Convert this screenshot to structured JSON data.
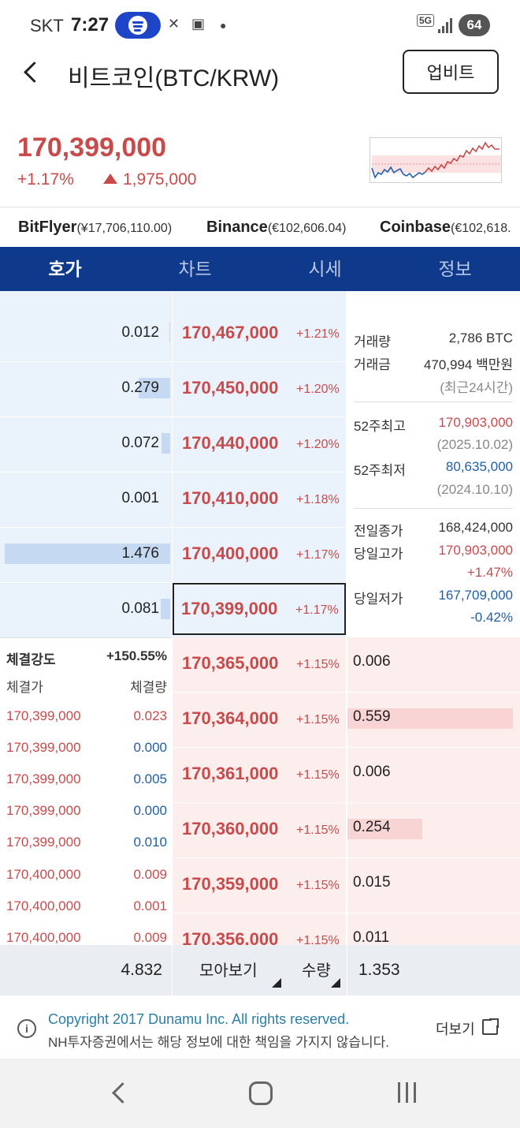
{
  "status": {
    "carrier": "SKT",
    "time": "7:27",
    "network": "5G",
    "battery": "64"
  },
  "header": {
    "title": "비트코인(BTC/KRW)",
    "upbit_label": "업비트"
  },
  "price": {
    "current": "170,399,000",
    "change_pct": "+1.17%",
    "change_abs": "1,975,000"
  },
  "exchanges": [
    {
      "name": "BitFlyer",
      "price": "(¥17,706,110.00)"
    },
    {
      "name": "Binance",
      "price": "(€102,606.04)"
    },
    {
      "name": "Coinbase",
      "price": "(€102,618."
    }
  ],
  "tabs": [
    "호가",
    "차트",
    "시세",
    "정보"
  ],
  "asks": [
    {
      "qty": "0.012",
      "price": "170,467,000",
      "pct": "+1.21%",
      "bar": 0.005
    },
    {
      "qty": "0.279",
      "price": "170,450,000",
      "pct": "+1.20%",
      "bar": 0.19
    },
    {
      "qty": "0.072",
      "price": "170,440,000",
      "pct": "+1.20%",
      "bar": 0.05
    },
    {
      "qty": "0.001",
      "price": "170,410,000",
      "pct": "+1.18%",
      "bar": 0.0
    },
    {
      "qty": "1.476",
      "price": "170,400,000",
      "pct": "+1.17%",
      "bar": 1.0
    },
    {
      "qty": "0.081",
      "price": "170,399,000",
      "pct": "+1.17%",
      "bar": 0.055
    }
  ],
  "bids": [
    {
      "price": "170,365,000",
      "pct": "+1.15%",
      "qty": "0.006",
      "bar": 0.0
    },
    {
      "price": "170,364,000",
      "pct": "+1.15%",
      "qty": "0.559",
      "bar": 1.0
    },
    {
      "price": "170,361,000",
      "pct": "+1.15%",
      "qty": "0.006",
      "bar": 0.0
    },
    {
      "price": "170,360,000",
      "pct": "+1.15%",
      "qty": "0.254",
      "bar": 0.45
    },
    {
      "price": "170,359,000",
      "pct": "+1.15%",
      "qty": "0.015",
      "bar": 0.0
    },
    {
      "price": "170,356,000",
      "pct": "+1.15%",
      "qty": "0.011",
      "bar": 0.0
    }
  ],
  "info": {
    "volume_label": "거래량",
    "volume": "2,786 BTC",
    "amount_label": "거래금",
    "amount": "470,994 백만원",
    "period": "(최근24시간)",
    "high52_label": "52주최고",
    "high52": "170,903,000",
    "high52_date": "(2025.10.02)",
    "low52_label": "52주최저",
    "low52": "80,635,000",
    "low52_date": "(2024.10.10)",
    "prev_close_label": "전일종가",
    "prev_close": "168,424,000",
    "day_high_label": "당일고가",
    "day_high": "170,903,000",
    "day_high_pct": "+1.47%",
    "day_low_label": "당일저가",
    "day_low": "167,709,000",
    "day_low_pct": "-0.42%"
  },
  "trades": {
    "strength_label": "체결강도",
    "strength": "+150.55%",
    "price_label": "체결가",
    "qty_label": "체결량",
    "rows": [
      {
        "price": "170,399,000",
        "qty": "0.023",
        "side": "buy"
      },
      {
        "price": "170,399,000",
        "qty": "0.000",
        "side": "sell"
      },
      {
        "price": "170,399,000",
        "qty": "0.005",
        "side": "sell"
      },
      {
        "price": "170,399,000",
        "qty": "0.000",
        "side": "sell"
      },
      {
        "price": "170,399,000",
        "qty": "0.010",
        "side": "sell"
      },
      {
        "price": "170,400,000",
        "qty": "0.009",
        "side": "buy"
      },
      {
        "price": "170,400,000",
        "qty": "0.001",
        "side": "buy"
      },
      {
        "price": "170,400,000",
        "qty": "0.009",
        "side": "buy"
      }
    ]
  },
  "footer": {
    "total_ask": "4.832",
    "mode_label": "모아보기",
    "unit_label": "수량",
    "total_bid": "1.353"
  },
  "copyright": {
    "line1": "Copyright 2017 Dunamu Inc. All rights reserved.",
    "line2": "NH투자증권에서는 해당 정보에 대한 책임을 가지지 않습니다.",
    "more": "더보기"
  },
  "colors": {
    "up": "#c84a4a",
    "down": "#1f5fa8",
    "tabbar": "#0f3a8c"
  }
}
